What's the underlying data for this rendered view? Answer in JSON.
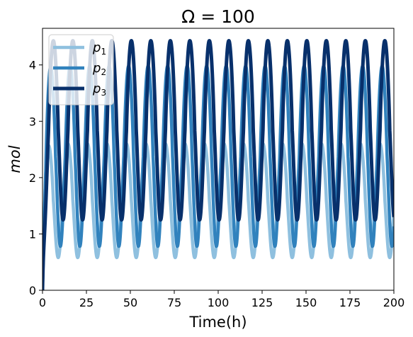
{
  "chart_data": {
    "type": "line",
    "title": "Ω = 100",
    "xlabel": "Time(h)",
    "ylabel": "mol",
    "xlim": [
      0,
      200
    ],
    "ylim": [
      0,
      4.65
    ],
    "xticks": [
      0,
      25,
      50,
      75,
      100,
      125,
      150,
      175,
      200
    ],
    "yticks": [
      0,
      1,
      2,
      3,
      4
    ],
    "grid": false,
    "legend_placement": "top-left",
    "period_h": 11.1,
    "series": [
      {
        "name": "p1",
        "label_base": "p",
        "label_sub": "1",
        "color": "#8fc0df",
        "line_width": 4.5,
        "min": 0.58,
        "max": 2.6,
        "phase_deg": 20,
        "x": [
          0,
          5,
          10,
          15,
          20,
          25,
          30,
          35,
          40,
          50,
          60,
          80,
          100,
          125,
          150,
          175,
          200
        ],
        "peak_times": [
          7,
          18,
          28.5,
          39.3,
          50.2,
          61.1,
          72.1,
          83.1,
          94.2,
          105.2,
          116.3,
          127.3,
          138.4,
          149.5,
          160.5,
          171.6,
          182.7,
          193.7
        ]
      },
      {
        "name": "p2",
        "label_base": "p",
        "label_sub": "2",
        "color": "#3182bd",
        "line_width": 4.5,
        "min": 0.78,
        "max": 3.98,
        "phase_deg": 60,
        "peak_times": [
          3,
          14.2,
          25,
          35.9,
          46.8,
          57.7,
          68.7,
          79.7,
          90.8,
          101.8,
          112.9,
          123.9,
          135,
          146.1,
          157.1,
          168.2,
          179.3,
          190.3
        ]
      },
      {
        "name": "p3",
        "label_base": "p",
        "label_sub": "3",
        "color": "#08306b",
        "line_width": 5,
        "min": 1.25,
        "max": 4.43,
        "phase_deg": 110,
        "peak_times": [
          2.2,
          25.5,
          36.5,
          47.5,
          58.6,
          69.6,
          80.6,
          91.7,
          102.8,
          113.8,
          124.9,
          136,
          147,
          158.1,
          169.2,
          180.2,
          191.3
        ]
      }
    ]
  }
}
